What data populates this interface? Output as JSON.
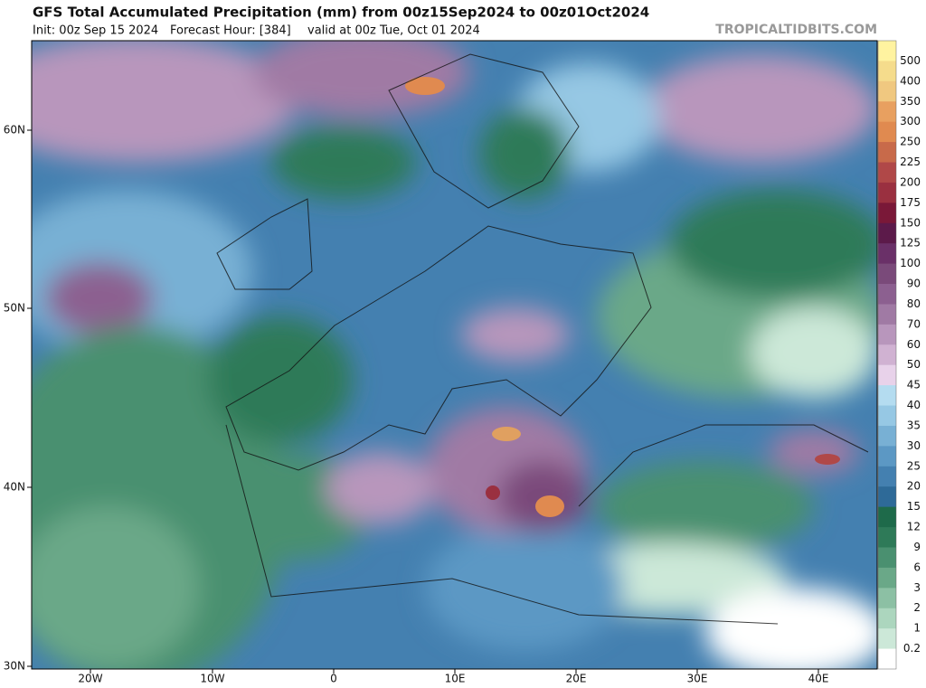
{
  "header": {
    "title": "GFS Total Accumulated Precipitation (mm) from 00z15Sep2024 to 00z01Oct2024",
    "init": "Init: 00z Sep 15 2024",
    "forecast_hour": "Forecast Hour: [384]",
    "valid": "valid at 00z Tue, Oct 01 2024",
    "watermark": "TROPICALTIDBITS.COM"
  },
  "map": {
    "lon_labels": [
      "20W",
      "10W",
      "0",
      "10E",
      "20E",
      "30E",
      "40E"
    ],
    "lat_labels": [
      "60N",
      "50N",
      "40N",
      "30N"
    ]
  },
  "colorbar": {
    "labels": [
      500,
      400,
      350,
      300,
      250,
      225,
      200,
      175,
      150,
      125,
      100,
      90,
      80,
      70,
      60,
      50,
      45,
      40,
      35,
      30,
      25,
      20,
      15,
      12,
      9,
      6,
      3,
      2,
      1,
      0.2
    ],
    "colors": [
      "#fff3a0",
      "#f5dc8c",
      "#f0c880",
      "#e8a060",
      "#e08a50",
      "#c86a4a",
      "#b04848",
      "#9a3040",
      "#7a1838",
      "#5c1a4a",
      "#6a3068",
      "#7a4a7a",
      "#8c6090",
      "#a07aa4",
      "#b896bc",
      "#d0b2d2",
      "#e8d2ea",
      "#b4dcf0",
      "#96c8e4",
      "#78b0d4",
      "#5c98c4",
      "#4480b0",
      "#2e6a98",
      "#1e6a4a",
      "#2e7a58",
      "#4a9070",
      "#6aa888",
      "#8cc0a4",
      "#acd6be",
      "#cce8d8",
      "#ffffff"
    ]
  }
}
